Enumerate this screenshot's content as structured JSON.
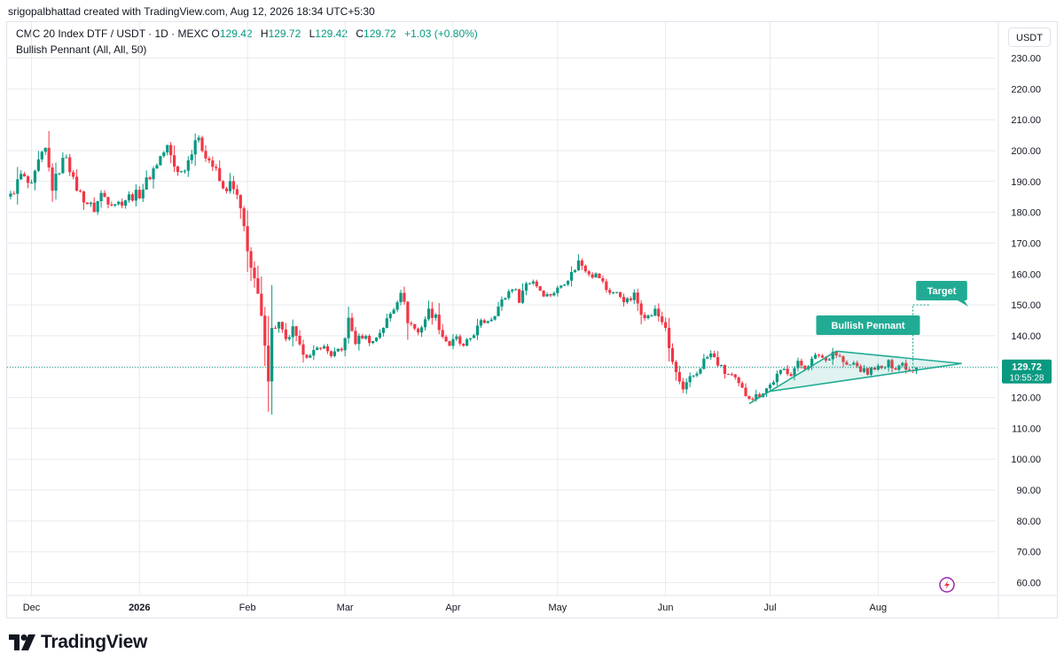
{
  "caption": "srigopalbhattad created with TradingView.com, Aug 12, 2026 18:34 UTC+5:30",
  "symbol_title": "CMC 20 Index DTF / USDT · 1D · MEXC",
  "ohlc": {
    "o_label": "O",
    "o": "129.42",
    "h_label": "H",
    "h": "129.72",
    "l_label": "L",
    "l": "129.42",
    "c_label": "C",
    "c": "129.72",
    "change": "+1.03 (+0.80%)"
  },
  "indicator": "Bullish Pennant (All, All, 50)",
  "currency_button": "USDT",
  "brand": "TradingView",
  "colors": {
    "up": "#089981",
    "down": "#f23645",
    "pattern": "#22ab94",
    "grid": "#e8eaef",
    "axis_text": "#131722",
    "last_price_bg": "#089981",
    "icon_purple": "#9c27b0"
  },
  "chart_data": {
    "type": "candlestick",
    "y_axis": {
      "ticks": [
        "60.00",
        "70.00",
        "80.00",
        "90.00",
        "100.00",
        "110.00",
        "120.00",
        "130.00",
        "140.00",
        "150.00",
        "160.00",
        "170.00",
        "180.00",
        "190.00",
        "200.00",
        "210.00",
        "220.00",
        "230.00"
      ],
      "range": [
        57,
        233
      ],
      "position": "right"
    },
    "x_axis": {
      "ticks": [
        {
          "label": "Dec",
          "date": "2025-12-01",
          "bold": false
        },
        {
          "label": "2026",
          "date": "2026-01-01",
          "bold": true
        },
        {
          "label": "Feb",
          "date": "2026-02-01",
          "bold": false
        },
        {
          "label": "Mar",
          "date": "2026-03-01",
          "bold": false
        },
        {
          "label": "Apr",
          "date": "2026-04-01",
          "bold": false
        },
        {
          "label": "May",
          "date": "2026-05-01",
          "bold": false
        },
        {
          "label": "Jun",
          "date": "2026-06-01",
          "bold": false
        },
        {
          "label": "Jul",
          "date": "2026-07-01",
          "bold": false
        },
        {
          "label": "Aug",
          "date": "2026-08-01",
          "bold": false
        }
      ]
    },
    "grid": true,
    "last_price": {
      "value": 129.72,
      "label": "129.72",
      "countdown": "10:55:28"
    },
    "closes": [
      {
        "date": "2025-11-25",
        "close": 185
      },
      {
        "date": "2025-11-28",
        "close": 192
      },
      {
        "date": "2025-12-01",
        "close": 188
      },
      {
        "date": "2025-12-03",
        "close": 196
      },
      {
        "date": "2025-12-05",
        "close": 200
      },
      {
        "date": "2025-12-07",
        "close": 188
      },
      {
        "date": "2025-12-09",
        "close": 194
      },
      {
        "date": "2025-12-11",
        "close": 199
      },
      {
        "date": "2025-12-13",
        "close": 190
      },
      {
        "date": "2025-12-15",
        "close": 186
      },
      {
        "date": "2025-12-17",
        "close": 183
      },
      {
        "date": "2025-12-19",
        "close": 181
      },
      {
        "date": "2025-12-21",
        "close": 186
      },
      {
        "date": "2025-12-23",
        "close": 184
      },
      {
        "date": "2025-12-26",
        "close": 183
      },
      {
        "date": "2025-12-29",
        "close": 185
      },
      {
        "date": "2026-01-01",
        "close": 186
      },
      {
        "date": "2026-01-04",
        "close": 192
      },
      {
        "date": "2026-01-07",
        "close": 198
      },
      {
        "date": "2026-01-09",
        "close": 201
      },
      {
        "date": "2026-01-11",
        "close": 195
      },
      {
        "date": "2026-01-13",
        "close": 193
      },
      {
        "date": "2026-01-15",
        "close": 197
      },
      {
        "date": "2026-01-17",
        "close": 204
      },
      {
        "date": "2026-01-19",
        "close": 201
      },
      {
        "date": "2026-01-21",
        "close": 197
      },
      {
        "date": "2026-01-23",
        "close": 193
      },
      {
        "date": "2026-01-25",
        "close": 187
      },
      {
        "date": "2026-01-27",
        "close": 189
      },
      {
        "date": "2026-01-29",
        "close": 185
      },
      {
        "date": "2026-01-31",
        "close": 175
      },
      {
        "date": "2026-02-02",
        "close": 162
      },
      {
        "date": "2026-02-04",
        "close": 153
      },
      {
        "date": "2026-02-06",
        "close": 138
      },
      {
        "date": "2026-02-07",
        "close": 126
      },
      {
        "date": "2026-02-08",
        "close": 142
      },
      {
        "date": "2026-02-10",
        "close": 144
      },
      {
        "date": "2026-02-12",
        "close": 138
      },
      {
        "date": "2026-02-14",
        "close": 142
      },
      {
        "date": "2026-02-16",
        "close": 136
      },
      {
        "date": "2026-02-19",
        "close": 133
      },
      {
        "date": "2026-02-22",
        "close": 137
      },
      {
        "date": "2026-02-25",
        "close": 134
      },
      {
        "date": "2026-02-28",
        "close": 135
      },
      {
        "date": "2026-03-02",
        "close": 145
      },
      {
        "date": "2026-03-04",
        "close": 138
      },
      {
        "date": "2026-03-06",
        "close": 140
      },
      {
        "date": "2026-03-09",
        "close": 138
      },
      {
        "date": "2026-03-12",
        "close": 143
      },
      {
        "date": "2026-03-15",
        "close": 149
      },
      {
        "date": "2026-03-17",
        "close": 155
      },
      {
        "date": "2026-03-19",
        "close": 145
      },
      {
        "date": "2026-03-22",
        "close": 141
      },
      {
        "date": "2026-03-25",
        "close": 148
      },
      {
        "date": "2026-03-27",
        "close": 146
      },
      {
        "date": "2026-03-29",
        "close": 140
      },
      {
        "date": "2026-03-31",
        "close": 137
      },
      {
        "date": "2026-04-02",
        "close": 139
      },
      {
        "date": "2026-04-04",
        "close": 136
      },
      {
        "date": "2026-04-07",
        "close": 141
      },
      {
        "date": "2026-04-09",
        "close": 144
      },
      {
        "date": "2026-04-12",
        "close": 146
      },
      {
        "date": "2026-04-15",
        "close": 151
      },
      {
        "date": "2026-04-18",
        "close": 156
      },
      {
        "date": "2026-04-20",
        "close": 152
      },
      {
        "date": "2026-04-22",
        "close": 157
      },
      {
        "date": "2026-04-24",
        "close": 158
      },
      {
        "date": "2026-04-26",
        "close": 155
      },
      {
        "date": "2026-04-28",
        "close": 153
      },
      {
        "date": "2026-05-01",
        "close": 155
      },
      {
        "date": "2026-05-03",
        "close": 158
      },
      {
        "date": "2026-05-05",
        "close": 160
      },
      {
        "date": "2026-05-07",
        "close": 164
      },
      {
        "date": "2026-05-09",
        "close": 162
      },
      {
        "date": "2026-05-11",
        "close": 160
      },
      {
        "date": "2026-05-13",
        "close": 159
      },
      {
        "date": "2026-05-15",
        "close": 155
      },
      {
        "date": "2026-05-17",
        "close": 154
      },
      {
        "date": "2026-05-19",
        "close": 153
      },
      {
        "date": "2026-05-21",
        "close": 151
      },
      {
        "date": "2026-05-23",
        "close": 153
      },
      {
        "date": "2026-05-25",
        "close": 148
      },
      {
        "date": "2026-05-27",
        "close": 146
      },
      {
        "date": "2026-05-29",
        "close": 148
      },
      {
        "date": "2026-06-01",
        "close": 143
      },
      {
        "date": "2026-06-02",
        "close": 135
      },
      {
        "date": "2026-06-04",
        "close": 128
      },
      {
        "date": "2026-06-06",
        "close": 122
      },
      {
        "date": "2026-06-08",
        "close": 126
      },
      {
        "date": "2026-06-10",
        "close": 128
      },
      {
        "date": "2026-06-12",
        "close": 132
      },
      {
        "date": "2026-06-14",
        "close": 134
      },
      {
        "date": "2026-06-16",
        "close": 131
      },
      {
        "date": "2026-06-18",
        "close": 128
      },
      {
        "date": "2026-06-20",
        "close": 127
      },
      {
        "date": "2026-06-22",
        "close": 124
      },
      {
        "date": "2026-06-24",
        "close": 121
      },
      {
        "date": "2026-06-26",
        "close": 120
      },
      {
        "date": "2026-06-28",
        "close": 121
      },
      {
        "date": "2026-07-01",
        "close": 124
      },
      {
        "date": "2026-07-03",
        "close": 127
      },
      {
        "date": "2026-07-05",
        "close": 129
      },
      {
        "date": "2026-07-07",
        "close": 128
      },
      {
        "date": "2026-07-09",
        "close": 131
      },
      {
        "date": "2026-07-11",
        "close": 130
      },
      {
        "date": "2026-07-13",
        "close": 132
      },
      {
        "date": "2026-07-15",
        "close": 134
      },
      {
        "date": "2026-07-17",
        "close": 132
      },
      {
        "date": "2026-07-19",
        "close": 135
      },
      {
        "date": "2026-07-21",
        "close": 133
      },
      {
        "date": "2026-07-23",
        "close": 130
      },
      {
        "date": "2026-07-25",
        "close": 131
      },
      {
        "date": "2026-07-27",
        "close": 129
      },
      {
        "date": "2026-07-29",
        "close": 128
      },
      {
        "date": "2026-07-31",
        "close": 130
      },
      {
        "date": "2026-08-02",
        "close": 129
      },
      {
        "date": "2026-08-04",
        "close": 131
      },
      {
        "date": "2026-08-06",
        "close": 130
      },
      {
        "date": "2026-08-08",
        "close": 131
      },
      {
        "date": "2026-08-10",
        "close": 129
      },
      {
        "date": "2026-08-12",
        "close": 129.72
      }
    ],
    "pattern": {
      "label": "Bullish Pennant",
      "target_label": "Target",
      "target_value": 150,
      "pole_start": {
        "date": "2026-06-25",
        "price": 118
      },
      "pole_end": {
        "date": "2026-07-20",
        "price": 135
      },
      "lower_start": {
        "date": "2026-07-01",
        "price": 122
      },
      "apex": {
        "date": "2026-08-25",
        "price": 131
      },
      "target_marker": {
        "date": "2026-08-11",
        "price": 150
      }
    }
  }
}
